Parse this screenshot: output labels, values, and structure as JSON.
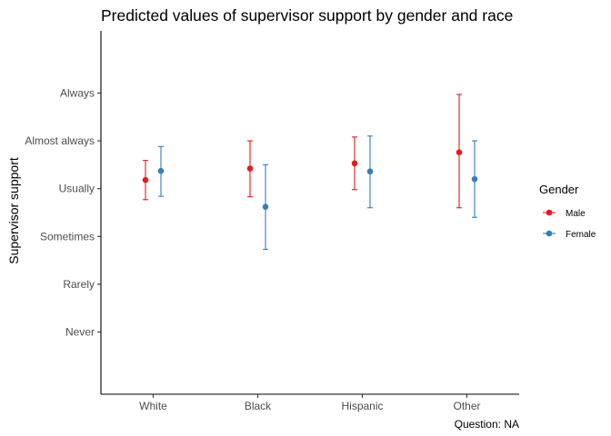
{
  "chart_data": {
    "type": "scatter",
    "title": "Predicted values of supervisor support by gender and race",
    "xlabel": "",
    "ylabel": "Supervisor support",
    "caption": "Question: NA",
    "categories": [
      "White",
      "Black",
      "Hispanic",
      "Other"
    ],
    "y_ticks": [
      {
        "value": 1,
        "label": "Never"
      },
      {
        "value": 2,
        "label": "Rarely"
      },
      {
        "value": 3,
        "label": "Sometimes"
      },
      {
        "value": 4,
        "label": "Usually"
      },
      {
        "value": 5,
        "label": "Almost always"
      },
      {
        "value": 6,
        "label": "Always"
      }
    ],
    "ylim": [
      -0.3,
      7.3
    ],
    "grid": false,
    "legend": {
      "title": "Gender",
      "position": "right"
    },
    "series": [
      {
        "name": "Male",
        "color": "#e41a1c",
        "values": [
          4.18,
          4.42,
          4.53,
          4.76
        ],
        "lower": [
          3.77,
          3.83,
          3.98,
          3.6
        ],
        "upper": [
          4.59,
          5.0,
          5.08,
          5.97
        ]
      },
      {
        "name": "Female",
        "color": "#377eb8",
        "values": [
          4.37,
          3.62,
          4.36,
          4.2
        ],
        "lower": [
          3.84,
          2.73,
          3.6,
          3.4
        ],
        "upper": [
          4.88,
          4.5,
          5.1,
          5.0
        ]
      }
    ]
  }
}
